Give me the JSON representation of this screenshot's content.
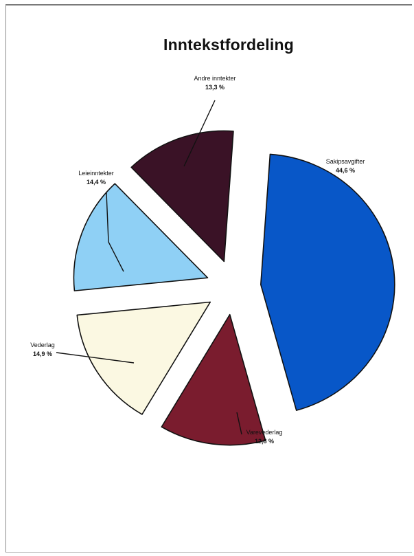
{
  "chart_data": {
    "type": "pie",
    "title": "Inntekstfordeling",
    "slices": [
      {
        "name": "Sakipsavgifter",
        "value": 44.6,
        "label": "Sakipsavgifter",
        "value_label": "44,6 %",
        "color": "#0857c8",
        "label_color": "#111111",
        "value_color": "#111111"
      },
      {
        "name": "Varevederlag",
        "value": 12.8,
        "label": "Varevederlag",
        "value_label": "12,8 %",
        "color": "#7a1c2e",
        "label_color": "#111111",
        "value_color": "#5a6aa8"
      },
      {
        "name": "Vederlag",
        "value": 14.9,
        "label": "Vederlag",
        "value_label": "14,9 %",
        "color": "#fbf8e2",
        "label_color": "#4a5aa0",
        "value_color": "#111111"
      },
      {
        "name": "Leieinntekter",
        "value": 14.4,
        "label": "Leieinntekter",
        "value_label": "14,4 %",
        "color": "#8fd0f5",
        "label_color": "#111111",
        "value_color": "#111111"
      },
      {
        "name": "Andre inntekter",
        "value": 13.3,
        "label": "Andre inntekter",
        "value_label": "13,3 %",
        "color": "#3a1226",
        "label_color": "#111111",
        "value_color": "#111111"
      }
    ],
    "legend": "none",
    "data_labels": "outside-with-leader-lines"
  }
}
